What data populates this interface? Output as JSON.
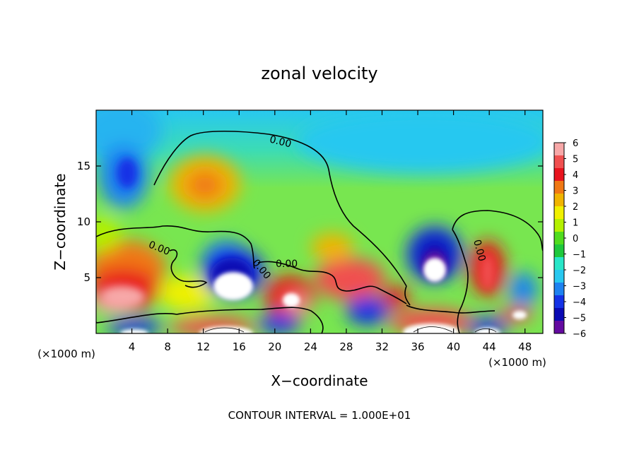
{
  "chart_data": {
    "type": "heatmap",
    "title": "zonal velocity",
    "xlabel": "X−coordinate",
    "ylabel": "Z−coordinate",
    "x_unit_label_left": "(×1000 m)",
    "x_unit_label_right": "(×1000 m)",
    "footer": "CONTOUR INTERVAL = 1.000E+01",
    "xlim": [
      0,
      50
    ],
    "ylim": [
      0,
      20
    ],
    "x_ticks": [
      4,
      8,
      12,
      16,
      20,
      24,
      28,
      32,
      36,
      40,
      44,
      48
    ],
    "y_ticks": [
      5,
      10,
      15
    ],
    "colorbar": {
      "range": [
        -6,
        6
      ],
      "ticks": [
        "6",
        "5",
        "4",
        "3",
        "2",
        "1",
        "0",
        "−1",
        "−2",
        "−3",
        "−4",
        "−5",
        "−6"
      ],
      "colors": [
        "#f7a8a8",
        "#f05050",
        "#e8141e",
        "#f07814",
        "#f0b400",
        "#f0f000",
        "#b4f000",
        "#50dc1e",
        "#1ec83c",
        "#28e6c8",
        "#28c8f0",
        "#1e82f0",
        "#1432e6",
        "#0a0ab4",
        "#640aa0"
      ]
    },
    "contour_labels": [
      "0.00",
      "0.00",
      "0.00",
      "0.00",
      "0.00"
    ],
    "background_value": 0.5,
    "features": [
      {
        "x": 3.0,
        "z": 14.0,
        "value": -3.5,
        "label": "upper-left negative cell"
      },
      {
        "x": 11.5,
        "z": 13.0,
        "value": 3.2,
        "label": "upper positive cell"
      },
      {
        "x": 4.0,
        "z": 5.5,
        "value": 3.5,
        "label": "left low-level positive"
      },
      {
        "x": 3.0,
        "z": 2.8,
        "value": 5.0,
        "label": "left near-surface maximum"
      },
      {
        "x": 14.0,
        "z": 6.0,
        "value": -4.0,
        "label": "negative cap over hole"
      },
      {
        "x": 21.0,
        "z": 3.0,
        "value": 5.0,
        "label": "positive lobe x=21"
      },
      {
        "x": 29.0,
        "z": 5.0,
        "value": 4.0,
        "label": "positive region x=29"
      },
      {
        "x": 37.5,
        "z": 7.0,
        "value": -5.5,
        "label": "strong negative cell x=37"
      },
      {
        "x": 44.0,
        "z": 5.5,
        "value": 4.5,
        "label": "positive region x=44"
      },
      {
        "x": 39.0,
        "z": 1.5,
        "value": 5.0,
        "label": "surface positive x=39"
      }
    ]
  }
}
